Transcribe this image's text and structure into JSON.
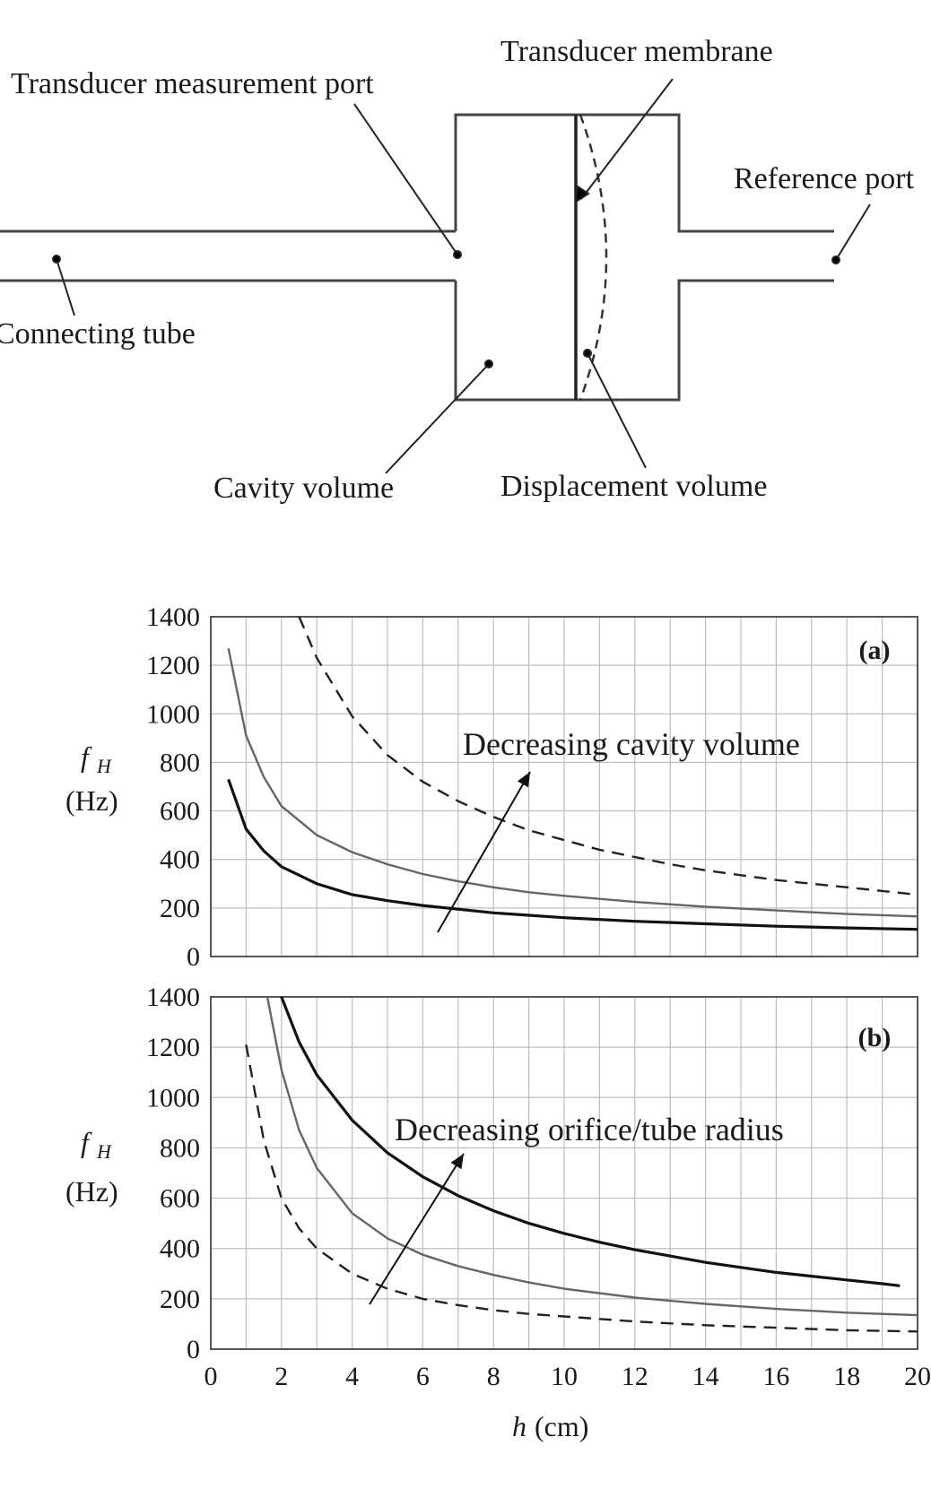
{
  "diagram": {
    "labels": {
      "measurement_port": "Transducer measurement port",
      "membrane": "Transducer membrane",
      "reference_port": "Reference port",
      "connecting_tube": "Connecting tube",
      "cavity_volume": "Cavity volume",
      "displacement_volume": "Displacement volume"
    }
  },
  "chart_data": [
    {
      "type": "line",
      "panel_label": "(a)",
      "annotation": "Decreasing cavity volume",
      "ylabel_symbol": "f",
      "ylabel_subscript": "H",
      "ylabel_unit": "(Hz)",
      "xlim": [
        0,
        20
      ],
      "ylim": [
        0,
        1400
      ],
      "yticks": [
        0,
        200,
        400,
        600,
        800,
        1000,
        1200,
        1400
      ],
      "grid": true,
      "series": [
        {
          "style": "dashed",
          "color": "#222222",
          "x": [
            2.5,
            3,
            4,
            5,
            6,
            7,
            8,
            9,
            10,
            11,
            12,
            13,
            14,
            15,
            16,
            17,
            18,
            19,
            20
          ],
          "y": [
            1400,
            1230,
            990,
            830,
            720,
            640,
            575,
            520,
            480,
            440,
            410,
            380,
            355,
            335,
            315,
            300,
            285,
            270,
            255
          ]
        },
        {
          "style": "solid",
          "color": "#666666",
          "x": [
            0.5,
            1,
            1.5,
            2,
            3,
            4,
            5,
            6,
            7,
            8,
            9,
            10,
            12,
            14,
            16,
            18,
            20
          ],
          "y": [
            1270,
            910,
            740,
            620,
            500,
            430,
            380,
            340,
            310,
            285,
            265,
            250,
            225,
            205,
            190,
            175,
            165
          ]
        },
        {
          "style": "solid",
          "color": "#111111",
          "x": [
            0.5,
            1,
            1.5,
            2,
            3,
            4,
            5,
            6,
            7,
            8,
            9,
            10,
            12,
            14,
            16,
            18,
            20
          ],
          "y": [
            730,
            525,
            435,
            370,
            300,
            255,
            230,
            210,
            195,
            180,
            170,
            160,
            145,
            135,
            125,
            118,
            112
          ]
        }
      ]
    },
    {
      "type": "line",
      "panel_label": "(b)",
      "annotation": "Decreasing orifice/tube radius",
      "ylabel_symbol": "f",
      "ylabel_subscript": "H",
      "ylabel_unit": "(Hz)",
      "xlabel_symbol": "h",
      "xlabel_unit": "(cm)",
      "xlim": [
        0,
        20
      ],
      "ylim": [
        0,
        1400
      ],
      "xticks": [
        0,
        2,
        4,
        6,
        8,
        10,
        12,
        14,
        16,
        18,
        20
      ],
      "yticks": [
        0,
        200,
        400,
        600,
        800,
        1000,
        1200,
        1400
      ],
      "grid": true,
      "series": [
        {
          "style": "solid",
          "color": "#111111",
          "x": [
            2.0,
            2.5,
            3,
            4,
            5,
            6,
            7,
            8,
            9,
            10,
            11,
            12,
            13,
            14,
            15,
            16,
            17,
            18,
            19,
            19.5
          ],
          "y": [
            1400,
            1220,
            1090,
            910,
            780,
            685,
            610,
            550,
            500,
            460,
            425,
            395,
            370,
            345,
            325,
            305,
            290,
            275,
            260,
            252
          ]
        },
        {
          "style": "solid",
          "color": "#666666",
          "x": [
            1.6,
            2,
            2.5,
            3,
            4,
            5,
            6,
            7,
            8,
            9,
            10,
            12,
            14,
            16,
            18,
            20
          ],
          "y": [
            1400,
            1110,
            870,
            720,
            540,
            440,
            375,
            330,
            295,
            265,
            240,
            205,
            180,
            160,
            145,
            135
          ]
        },
        {
          "style": "dashed",
          "color": "#222222",
          "x": [
            1.0,
            1.5,
            2,
            2.5,
            3,
            4,
            5,
            6,
            7,
            8,
            9,
            10,
            12,
            14,
            16,
            18,
            20
          ],
          "y": [
            1210,
            830,
            600,
            480,
            400,
            300,
            240,
            200,
            175,
            155,
            140,
            130,
            110,
            95,
            85,
            75,
            70
          ]
        }
      ]
    }
  ]
}
